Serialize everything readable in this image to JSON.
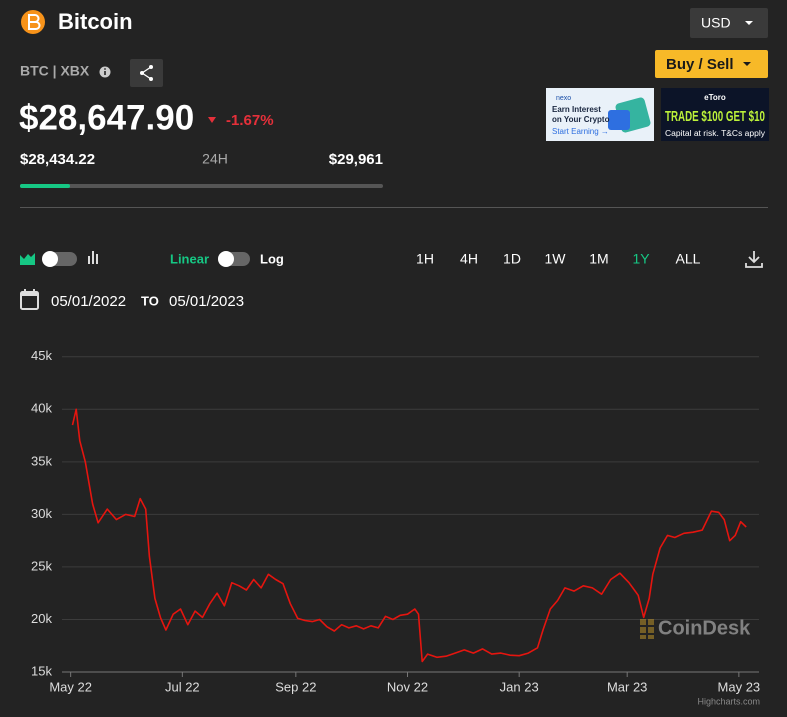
{
  "header": {
    "title": "Bitcoin",
    "currency": "USD",
    "ticker": "BTC | XBX",
    "action": "Buy / Sell"
  },
  "price": {
    "current": "$28,647.90",
    "change": "-1.67%",
    "low": "$28,434.22",
    "period": "24H",
    "high": "$29,961"
  },
  "ads": {
    "nexo": {
      "brand": "nexo",
      "line1": "Earn Interest",
      "line2": "on Your Crypto",
      "cta": "Start Earning →"
    },
    "etoro": {
      "brand": "eToro",
      "headline": "TRADE $100 GET $10",
      "note": "Capital at risk. T&Cs apply"
    }
  },
  "toolbar": {
    "linear": "Linear",
    "log": "Log",
    "ranges": [
      "1H",
      "4H",
      "1D",
      "1W",
      "1M",
      "1Y",
      "ALL"
    ],
    "active_range": 5
  },
  "date_range": {
    "from": "05/01/2022",
    "to_label": "TO",
    "to": "05/01/2023"
  },
  "watermark": "CoinDesk",
  "credit": "Highcharts.com",
  "chart_data": {
    "type": "line",
    "x": [
      1,
      3,
      5,
      8,
      12,
      15,
      20,
      25,
      30,
      35,
      38,
      41,
      43,
      46,
      49,
      52,
      56,
      60,
      64,
      68,
      72,
      76,
      80,
      84,
      88,
      92,
      96,
      100,
      104,
      108,
      112,
      116,
      120,
      124,
      128,
      132,
      136,
      140,
      144,
      148,
      152,
      156,
      160,
      164,
      168,
      172,
      176,
      180,
      184,
      188,
      190,
      192,
      195,
      200,
      205,
      210,
      215,
      220,
      225,
      230,
      235,
      240,
      245,
      250,
      255,
      258,
      262,
      266,
      270,
      275,
      280,
      285,
      290,
      295,
      300,
      305,
      310,
      313,
      316,
      318,
      322,
      326,
      330,
      335,
      340,
      345,
      350,
      354,
      357,
      360,
      363,
      366,
      369
    ],
    "series": [
      {
        "color": "#e5150f",
        "values": [
          38500,
          40000,
          37000,
          35000,
          31000,
          29200,
          30500,
          29500,
          30000,
          29800,
          31500,
          30500,
          26000,
          22000,
          20200,
          19000,
          20500,
          21000,
          19500,
          20800,
          20200,
          21500,
          22500,
          21300,
          23500,
          23200,
          22800,
          23800,
          23000,
          24300,
          23800,
          23400,
          21500,
          20100,
          19900,
          19800,
          20000,
          19300,
          18900,
          19500,
          19200,
          19400,
          19100,
          19400,
          19200,
          20300,
          20000,
          20400,
          20500,
          21000,
          20500,
          16000,
          16700,
          16400,
          16500,
          16800,
          17100,
          16800,
          17200,
          16700,
          16800,
          16600,
          16550,
          16800,
          17300,
          19000,
          21000,
          21800,
          23000,
          22700,
          23200,
          23000,
          22400,
          23800,
          24400,
          23500,
          22300,
          20200,
          22000,
          24300,
          26800,
          28000,
          27800,
          28200,
          28300,
          28500,
          30300,
          30200,
          29500,
          27500,
          28000,
          29300,
          28800
        ]
      }
    ],
    "xlim": [
      -2,
      376
    ],
    "xticks": [
      {
        "value": 0,
        "label": "May 22"
      },
      {
        "value": 61,
        "label": "Jul 22"
      },
      {
        "value": 123,
        "label": "Sep 22"
      },
      {
        "value": 184,
        "label": "Nov 22"
      },
      {
        "value": 245,
        "label": "Jan 23"
      },
      {
        "value": 304,
        "label": "Mar 23"
      },
      {
        "value": 365,
        "label": "May 23"
      }
    ],
    "ylim": [
      15000,
      46500
    ],
    "yticks": [
      {
        "value": 15000,
        "label": "15k"
      },
      {
        "value": 20000,
        "label": "20k"
      },
      {
        "value": 25000,
        "label": "25k"
      },
      {
        "value": 30000,
        "label": "30k"
      },
      {
        "value": 35000,
        "label": "35k"
      },
      {
        "value": 40000,
        "label": "40k"
      },
      {
        "value": 45000,
        "label": "45k"
      }
    ],
    "grid": true
  }
}
